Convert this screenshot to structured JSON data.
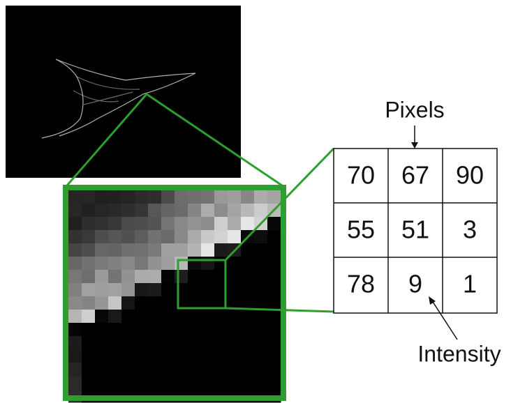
{
  "labels": {
    "top": "Pixels",
    "bottom": "Intensity"
  },
  "grid": {
    "rows": [
      [
        70,
        67,
        90
      ],
      [
        55,
        51,
        3
      ],
      [
        78,
        9,
        1
      ]
    ]
  }
}
